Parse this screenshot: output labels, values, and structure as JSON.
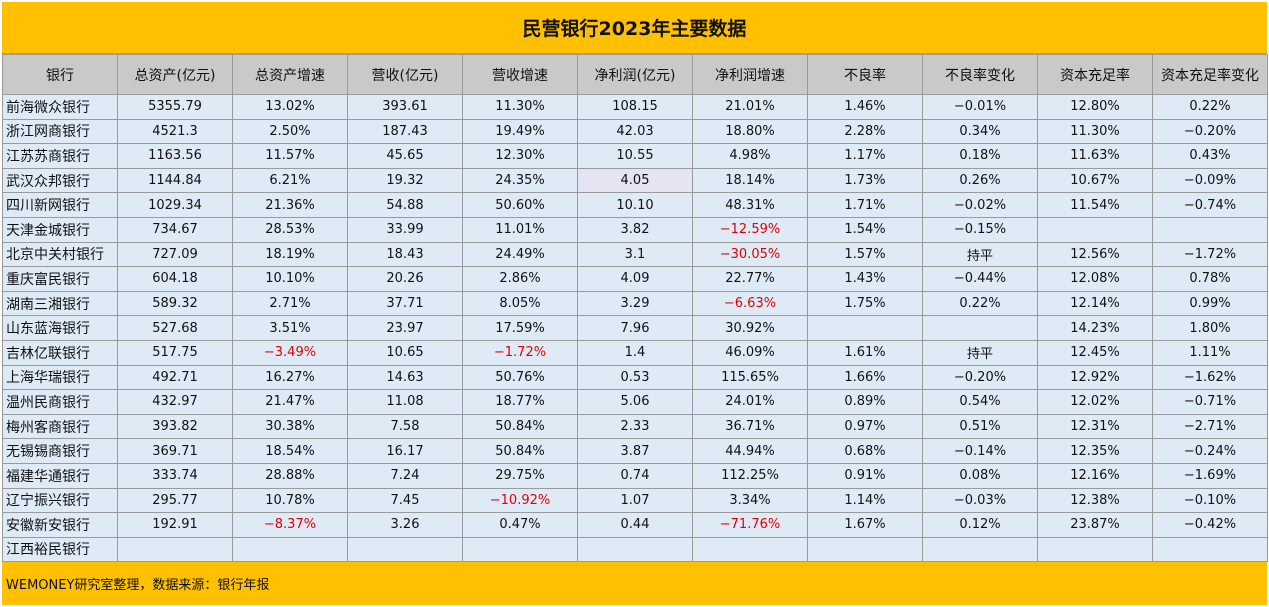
{
  "title": "民营银行2023年主要数据",
  "headers": [
    "银行",
    "总资产(亿元)",
    "总资产增速",
    "营收(亿元)",
    "营收增速",
    "净利润(亿元)",
    "净利润增速",
    "不良率",
    "不良率变化",
    "资本充足率",
    "资本充足率变化"
  ],
  "rows": [
    [
      "前海微众银行",
      "5355.79",
      "13.02%",
      "393.61",
      "11.30%",
      "108.15",
      "21.01%",
      "1.46%",
      "−0.01%",
      "12.80%",
      "0.22%"
    ],
    [
      "浙江网商银行",
      "4521.3",
      "2.50%",
      "187.43",
      "19.49%",
      "42.03",
      "18.80%",
      "2.28%",
      "0.34%",
      "11.30%",
      "−0.20%"
    ],
    [
      "江苏苏商银行",
      "1163.56",
      "11.57%",
      "45.65",
      "12.30%",
      "10.55",
      "4.98%",
      "1.17%",
      "0.18%",
      "11.63%",
      "0.43%"
    ],
    [
      "武汉众邦银行",
      "1144.84",
      "6.21%",
      "19.32",
      "24.35%",
      "4.05",
      "18.14%",
      "1.73%",
      "0.26%",
      "10.67%",
      "−0.09%"
    ],
    [
      "四川新网银行",
      "1029.34",
      "21.36%",
      "54.88",
      "50.60%",
      "10.10",
      "48.31%",
      "1.71%",
      "−0.02%",
      "11.54%",
      "−0.74%"
    ],
    [
      "天津金城银行",
      "734.67",
      "28.53%",
      "33.99",
      "11.01%",
      "3.82",
      "−12.59%",
      "1.54%",
      "−0.15%",
      "",
      ""
    ],
    [
      "北京中关村银行",
      "727.09",
      "18.19%",
      "18.43",
      "24.49%",
      "3.1",
      "−30.05%",
      "1.57%",
      "持平",
      "12.56%",
      "−1.72%"
    ],
    [
      "重庆富民银行",
      "604.18",
      "10.10%",
      "20.26",
      "2.86%",
      "4.09",
      "22.77%",
      "1.43%",
      "−0.44%",
      "12.08%",
      "0.78%"
    ],
    [
      "湖南三湘银行",
      "589.32",
      "2.71%",
      "37.71",
      "8.05%",
      "3.29",
      "−6.63%",
      "1.75%",
      "0.22%",
      "12.14%",
      "0.99%"
    ],
    [
      "山东蓝海银行",
      "527.68",
      "3.51%",
      "23.97",
      "17.59%",
      "7.96",
      "30.92%",
      "",
      "",
      "14.23%",
      "1.80%"
    ],
    [
      "吉林亿联银行",
      "517.75",
      "−3.49%",
      "10.65",
      "−1.72%",
      "1.4",
      "46.09%",
      "1.61%",
      "持平",
      "12.45%",
      "1.11%"
    ],
    [
      "上海华瑞银行",
      "492.71",
      "16.27%",
      "14.63",
      "50.76%",
      "0.53",
      "115.65%",
      "1.66%",
      "−0.20%",
      "12.92%",
      "−1.62%"
    ],
    [
      "温州民商银行",
      "432.97",
      "21.47%",
      "11.08",
      "18.77%",
      "5.06",
      "24.01%",
      "0.89%",
      "0.54%",
      "12.02%",
      "−0.71%"
    ],
    [
      "梅州客商银行",
      "393.82",
      "30.38%",
      "7.58",
      "50.84%",
      "2.33",
      "36.71%",
      "0.97%",
      "0.51%",
      "12.31%",
      "−2.71%"
    ],
    [
      "无锡锡商银行",
      "369.71",
      "18.54%",
      "16.17",
      "50.84%",
      "3.87",
      "44.94%",
      "0.68%",
      "−0.14%",
      "12.35%",
      "−0.24%"
    ],
    [
      "福建华通银行",
      "333.74",
      "28.88%",
      "7.24",
      "29.75%",
      "0.74",
      "112.25%",
      "0.91%",
      "0.08%",
      "12.16%",
      "−1.69%"
    ],
    [
      "辽宁振兴银行",
      "295.77",
      "10.78%",
      "7.45",
      "−10.92%",
      "1.07",
      "3.34%",
      "1.14%",
      "−0.03%",
      "12.38%",
      "−0.10%"
    ],
    [
      "安徽新安银行",
      "192.91",
      "−8.37%",
      "3.26",
      "0.47%",
      "0.44",
      "−71.76%",
      "1.67%",
      "0.12%",
      "23.87%",
      "−0.42%"
    ],
    [
      "江西裕民银行",
      "",
      "",
      "",
      "",
      "",
      "",
      "",
      "",
      "",
      ""
    ]
  ],
  "red_cells": [
    [
      5,
      6
    ],
    [
      6,
      6
    ],
    [
      8,
      6
    ],
    [
      10,
      2
    ],
    [
      10,
      4
    ],
    [
      16,
      4
    ],
    [
      17,
      2
    ],
    [
      17,
      6
    ]
  ],
  "highlight_cells": [
    [
      3,
      5
    ]
  ],
  "colors": {
    "header_band": "#ffc000",
    "cell_bg": "#deebf7",
    "header_bg": "#c9c9c9",
    "negative": "#e00000"
  },
  "footer": "WEMONEY研究室整理，数据来源：银行年报"
}
